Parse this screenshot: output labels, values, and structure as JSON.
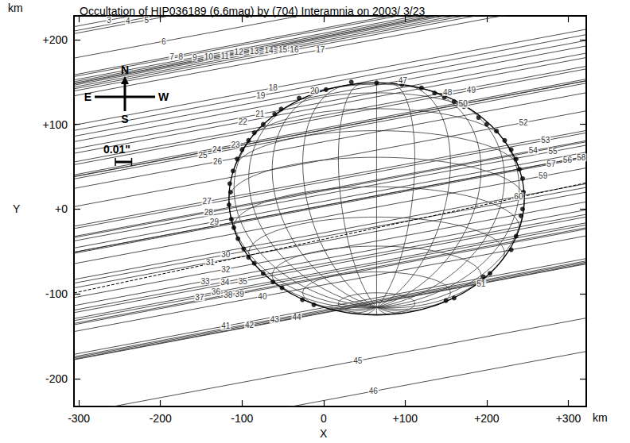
{
  "chart_data": {
    "type": "scatter",
    "title": "Occultation of HIP036189 (6.6mag) by (704) Interamnia on 2003/ 3/23",
    "x_label": "X",
    "y_label": "Y",
    "x_unit": "km",
    "y_unit": "km",
    "xlim": [
      -306,
      322
    ],
    "ylim": [
      -233,
      228
    ],
    "xticks": [
      -300,
      -200,
      -100,
      0,
      {
        "value": 100,
        "label": "+100"
      },
      {
        "value": 200,
        "label": "+200"
      },
      {
        "value": 300,
        "label": "+300"
      }
    ],
    "yticks": [
      -200,
      -100,
      {
        "value": 0,
        "label": "+0"
      },
      {
        "value": 100,
        "label": "+100"
      },
      {
        "value": 200,
        "label": "+200"
      }
    ],
    "grid": false,
    "chords": {
      "slope": 0.18,
      "labels": [
        "3",
        "4",
        "5",
        "6",
        "7",
        "8",
        "9",
        "10",
        "11",
        "12",
        "13",
        "14",
        "15",
        "16",
        "17",
        "18",
        "19",
        "20",
        "21",
        "22",
        "23",
        "24",
        "25",
        "26",
        "27",
        "28",
        "29",
        "30",
        "31",
        "32",
        "33",
        "34",
        "35",
        "36",
        "37",
        "38",
        "39",
        "40",
        "41",
        "42",
        "43",
        "44",
        "45",
        "46",
        "47",
        "48",
        "49",
        "50",
        "51",
        "52",
        "53",
        "54",
        "55",
        "56",
        "57",
        "58",
        "59",
        "60"
      ],
      "x": [
        -263,
        -240,
        -217,
        -196,
        -186,
        -175,
        -158,
        -141,
        -121,
        -104,
        -85,
        -67,
        -50,
        -36,
        -4,
        -62,
        -77,
        -11,
        -78,
        -99,
        -108,
        -131,
        -148,
        -130,
        -143,
        -141,
        -134,
        -120,
        -139,
        -120,
        -145,
        -121,
        -99,
        -132,
        -152,
        -117,
        -103,
        -75,
        -120,
        -91,
        -60,
        -33,
        42,
        61,
        97,
        152,
        181,
        171,
        193,
        245,
        272,
        257,
        281,
        299,
        279,
        316,
        269,
        239
      ],
      "y": [
        223,
        222,
        223,
        198,
        180,
        180,
        179,
        180,
        181,
        185,
        186,
        187,
        188,
        188,
        188,
        143,
        134,
        139,
        112,
        103,
        76,
        70,
        64,
        56,
        9,
        -4,
        -15,
        -54,
        -63,
        -71,
        -85,
        -86,
        -85,
        -98,
        -104,
        -101,
        -100,
        -103,
        -138,
        -137,
        -130,
        -128,
        -179,
        -215,
        152,
        138,
        140,
        124,
        -88,
        102,
        81,
        69,
        68,
        58,
        53,
        61,
        39,
        15
      ]
    },
    "events": {
      "x": [
        3,
        34,
        65,
        96,
        120,
        136,
        148,
        160,
        172,
        190,
        200,
        212,
        222,
        230,
        236,
        240,
        244,
        245,
        244,
        242,
        236,
        230,
        204,
        196,
        160,
        150,
        -10,
        -30,
        -52,
        -60,
        -74,
        -85,
        -92,
        -100,
        -106,
        -111,
        -115,
        -114,
        -116,
        -113,
        -110,
        -105,
        -98,
        -92,
        -85,
        -74,
        -62,
        -51,
        -26,
        -12
      ],
      "y": [
        141,
        150,
        149,
        147,
        143,
        137,
        132,
        127,
        121,
        108,
        100,
        92,
        81,
        70,
        59,
        47,
        36,
        20,
        0,
        -8,
        -32,
        -48,
        -76,
        -80,
        -105,
        -108,
        138,
        131,
        118,
        112,
        100,
        90,
        81,
        70,
        59,
        45,
        30,
        20,
        5,
        -12,
        -22,
        -35,
        -47,
        -57,
        -64,
        -76,
        -86,
        -93,
        -107,
        -113
      ]
    },
    "model": {
      "center": [
        65,
        12
      ],
      "radii": [
        181,
        137
      ],
      "view_latitude": -21,
      "grid_step": 15
    },
    "dashed_line": {
      "x": [
        -306,
        322
      ],
      "y": [
        -99,
        31
      ]
    },
    "compass": {
      "north": "N",
      "south": "S",
      "east": "E",
      "west": "W"
    },
    "scale_bar": {
      "label": "0.01\"",
      "length": 20
    }
  }
}
